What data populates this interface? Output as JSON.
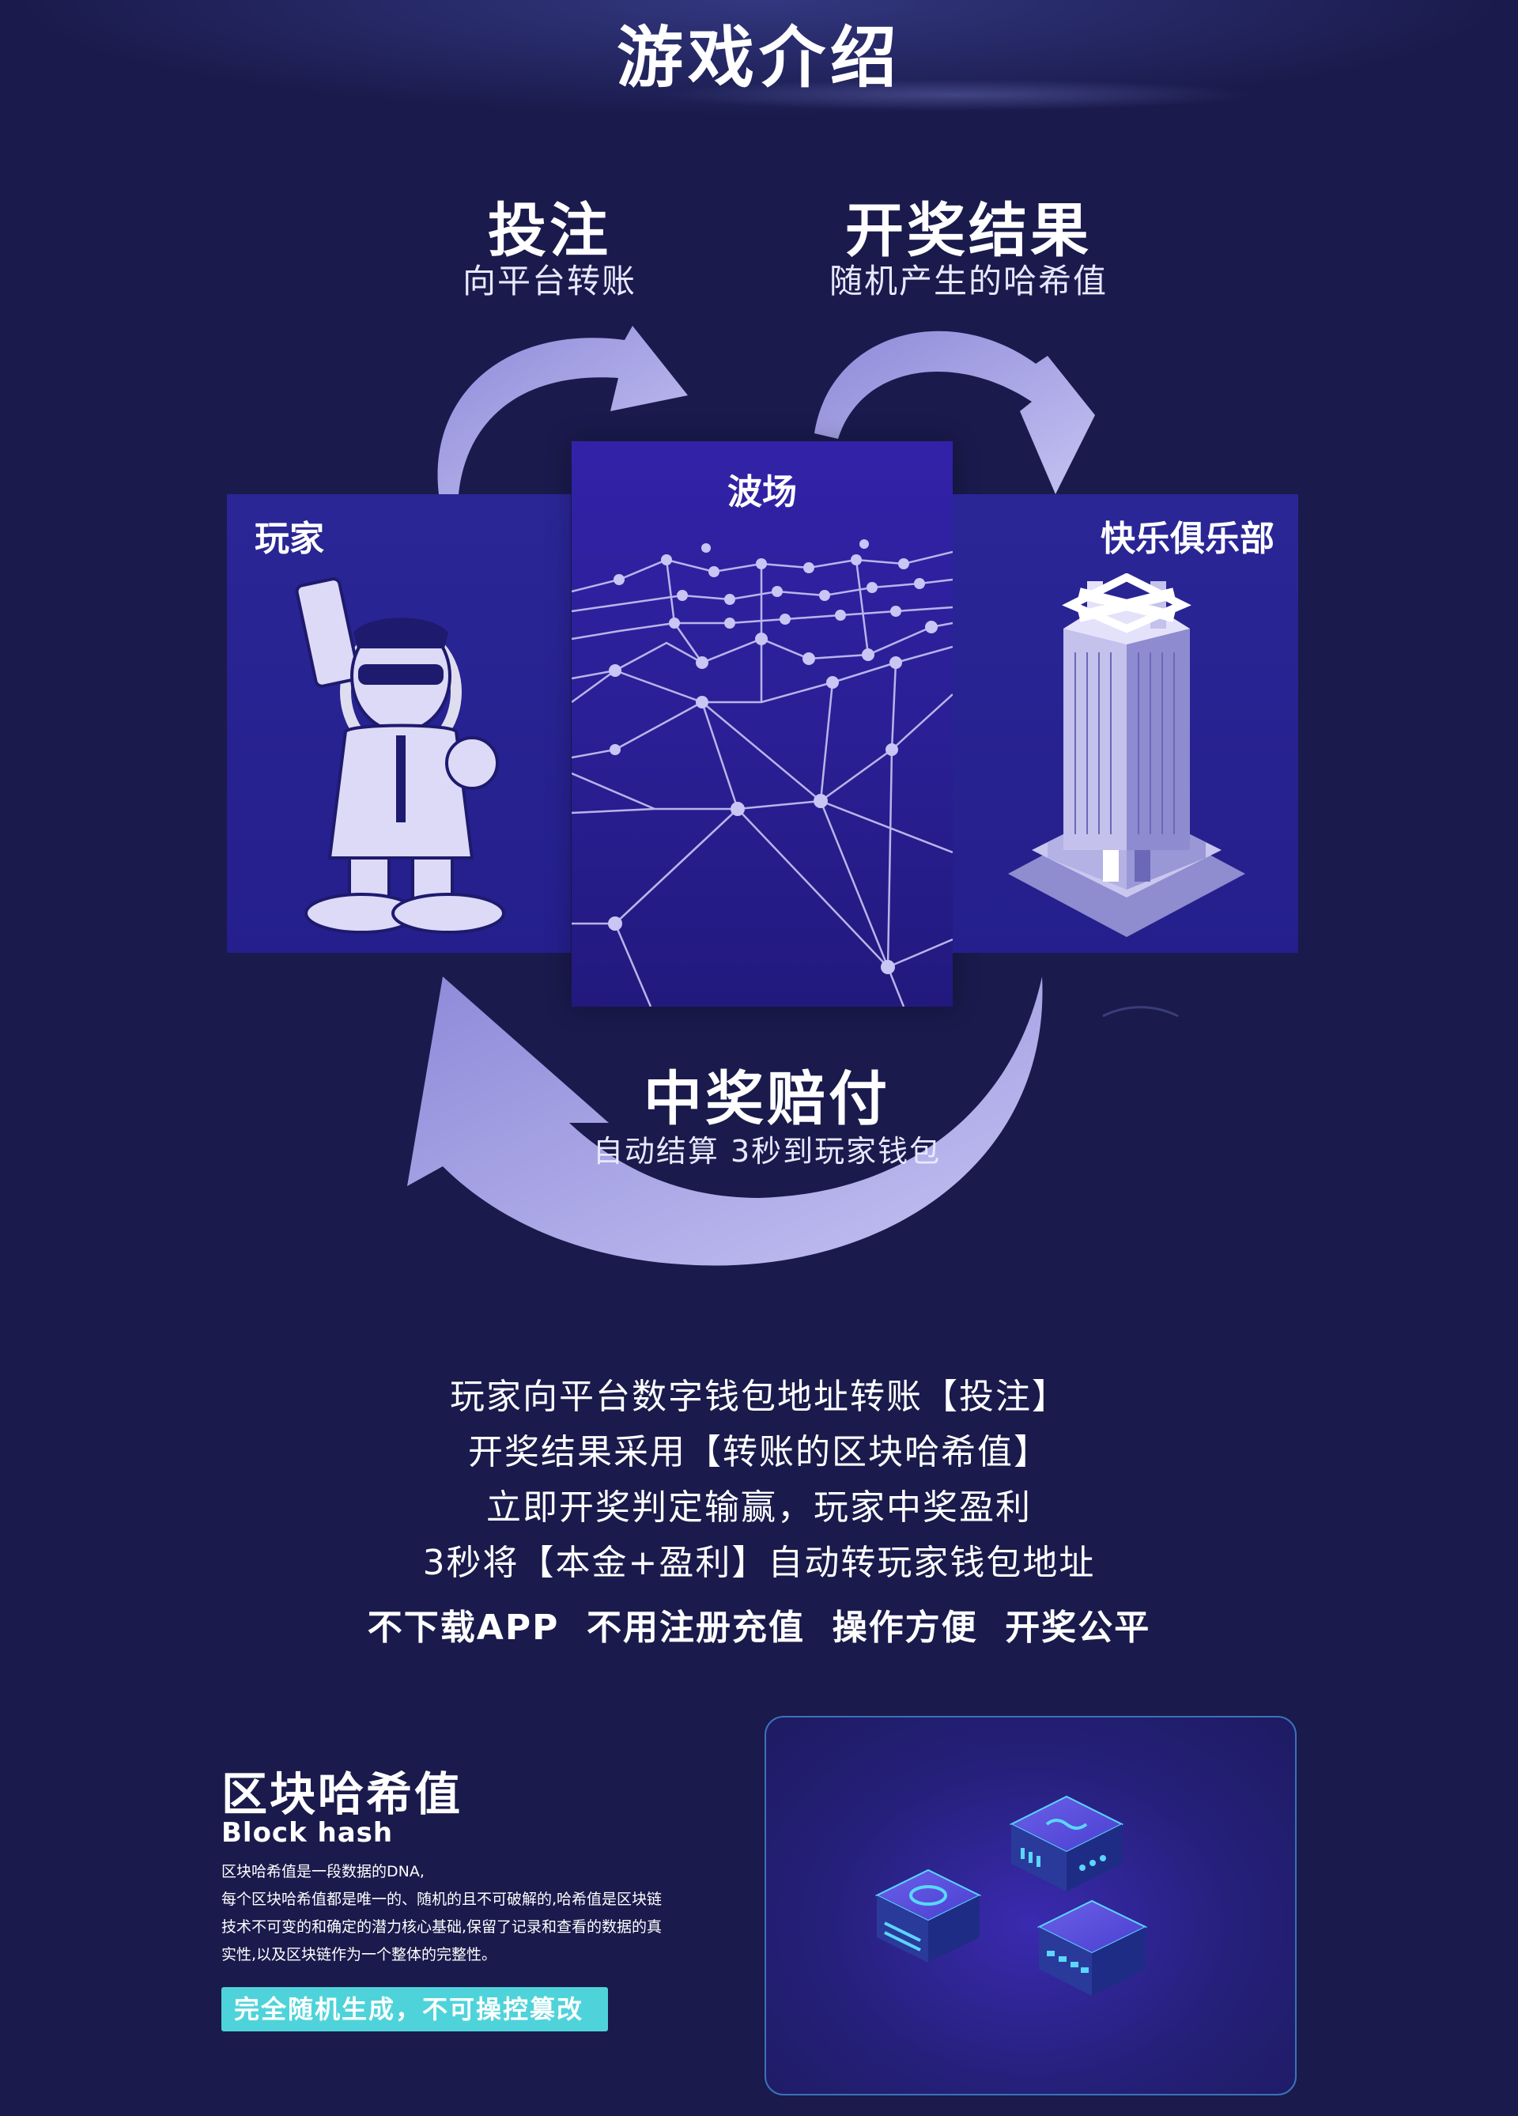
{
  "page_title": "游戏介绍",
  "steps": {
    "bet": {
      "title": "投注",
      "subtitle": "向平台转账"
    },
    "result": {
      "title": "开奖结果",
      "subtitle": "随机产生的哈希值"
    },
    "payout": {
      "title": "中奖赔付",
      "subtitle": "自动结算 3秒到玩家钱包"
    }
  },
  "panels": {
    "player": {
      "label": "玩家"
    },
    "tron": {
      "label": "波场"
    },
    "club": {
      "label": "快乐俱乐部"
    }
  },
  "description": [
    "玩家向平台数字钱包地址转账【投注】",
    "开奖结果采用【转账的区块哈希值】",
    "立即开奖判定输赢，玩家中奖盈利",
    "3秒将【本金+盈利】自动转玩家钱包地址"
  ],
  "slogan": "不下载APP  不用注册充值  操作方便  开奖公平",
  "block_hash": {
    "title": "区块哈希值",
    "subtitle": "Block hash",
    "paragraph": [
      "区块哈希值是一段数据的DNA,",
      "每个区块哈希值都是唯一的、随机的且不可破解的,哈希值是区块链",
      "技术不可变的和确定的潜力核心基础,保留了记录和查看的数据的真",
      "实性,以及区块链作为一个整体的完整性。"
    ],
    "badge": "完全随机生成，不可操控篡改"
  },
  "colors": {
    "background": "#1a1a4c",
    "arrow": "#b9b6ec",
    "panel": "#2a2696",
    "badge": "#4fd3da",
    "card_border": "#3a73b8"
  },
  "icons": [
    "arrow-curve-icon",
    "network-graph-icon",
    "player-illustration-icon",
    "building-icon",
    "server-block-icon"
  ]
}
